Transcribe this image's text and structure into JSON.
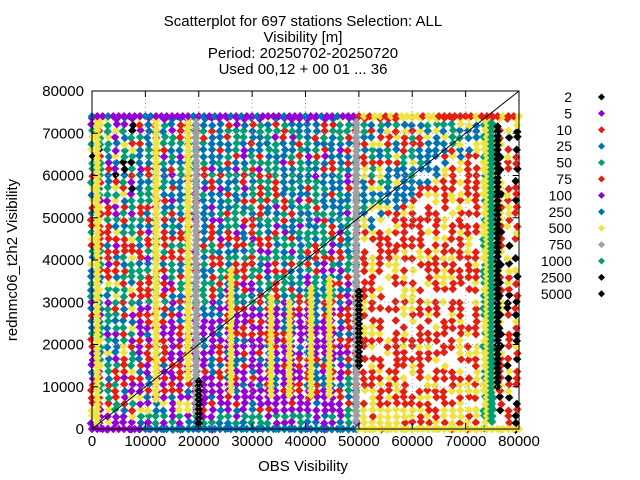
{
  "chart_data": {
    "type": "scatter",
    "title_lines": [
      "Scatterplot for  697 stations Selection: ALL",
      "Visibility [m]",
      "Period: 20250702-20250720",
      "Used 00,12 + 00 01 ... 36"
    ],
    "xlabel": "OBS Visibility",
    "ylabel": "rednmc06_t2h2 Visibility",
    "xlim": [
      0,
      80000
    ],
    "ylim": [
      0,
      80000
    ],
    "x_ticks": [
      0,
      10000,
      20000,
      30000,
      40000,
      50000,
      60000,
      70000,
      80000
    ],
    "y_ticks": [
      0,
      10000,
      20000,
      30000,
      40000,
      50000,
      60000,
      70000,
      80000
    ],
    "x_tick_labels": [
      "0",
      "10000",
      "20000",
      "30000",
      "40000",
      "50000",
      "60000",
      "70000",
      "80000"
    ],
    "y_tick_labels": [
      "0",
      "10000",
      "20000",
      "30000",
      "40000",
      "50000",
      "60000",
      "70000",
      "80000"
    ],
    "grid": true,
    "diagonal_line": true,
    "legend_placement": "right",
    "legend": [
      {
        "label": "2",
        "color": "#000000"
      },
      {
        "label": "5",
        "color": "#9400d3"
      },
      {
        "label": "10",
        "color": "#e51e10"
      },
      {
        "label": "25",
        "color": "#0072b2"
      },
      {
        "label": "50",
        "color": "#009e73"
      },
      {
        "label": "75",
        "color": "#e51e10"
      },
      {
        "label": "100",
        "color": "#9400d3"
      },
      {
        "label": "250",
        "color": "#0072b2"
      },
      {
        "label": "500",
        "color": "#f0e442"
      },
      {
        "label": "750",
        "color": "#a0a0a0"
      },
      {
        "label": "1000",
        "color": "#009e73"
      },
      {
        "label": "2500",
        "color": "#000000"
      },
      {
        "label": "5000",
        "color": "#000000"
      }
    ],
    "series_note": "dense overlapping point clouds; representative density fields drawn per legend color"
  }
}
